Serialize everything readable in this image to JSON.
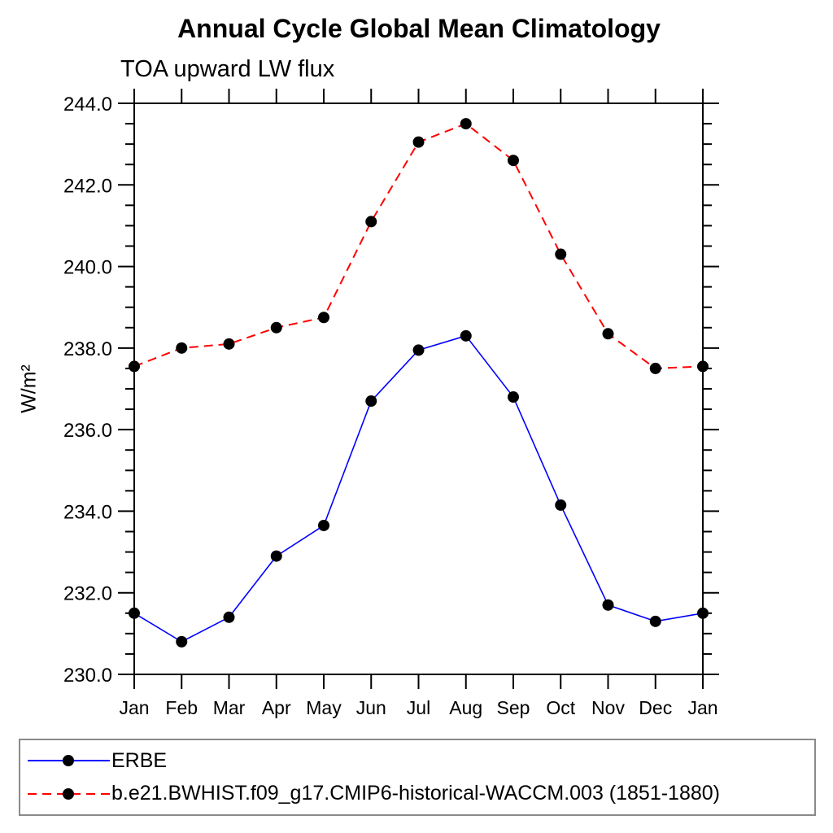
{
  "colors": {
    "foreground": "#000000",
    "background": "#ffffff",
    "legend_border": "#8a8a8a",
    "erbe_line": "#0000ff",
    "model_line": "#ff0000",
    "marker": "#000000"
  },
  "chart_data": {
    "type": "line",
    "title": "Annual Cycle Global Mean Climatology",
    "subtitle": "TOA upward LW flux",
    "ylabel": "W/m²",
    "xlabel": "",
    "ylim": [
      230.0,
      244.0
    ],
    "y_major_tick_step": 2.0,
    "y_minor_tick_step": 0.5,
    "grid": false,
    "legend_position": "bottom-left-box",
    "categories": [
      "Jan",
      "Feb",
      "Mar",
      "Apr",
      "May",
      "Jun",
      "Jul",
      "Aug",
      "Sep",
      "Oct",
      "Nov",
      "Dec",
      "Jan"
    ],
    "series": [
      {
        "name": "ERBE",
        "color": "#0000ff",
        "line_style": "solid",
        "marker": "filled-circle",
        "marker_color": "#000000",
        "values": [
          231.5,
          230.8,
          231.4,
          232.9,
          233.65,
          236.7,
          237.95,
          238.3,
          236.8,
          234.15,
          231.7,
          231.3,
          231.5
        ]
      },
      {
        "name": "b.e21.BWHIST.f09_g17.CMIP6-historical-WACCM.003 (1851-1880)",
        "color": "#ff0000",
        "line_style": "dashed",
        "marker": "filled-circle",
        "marker_color": "#000000",
        "values": [
          237.55,
          238.0,
          238.1,
          238.5,
          238.75,
          241.1,
          243.05,
          243.5,
          242.6,
          240.3,
          238.35,
          237.5,
          237.55
        ]
      }
    ]
  }
}
